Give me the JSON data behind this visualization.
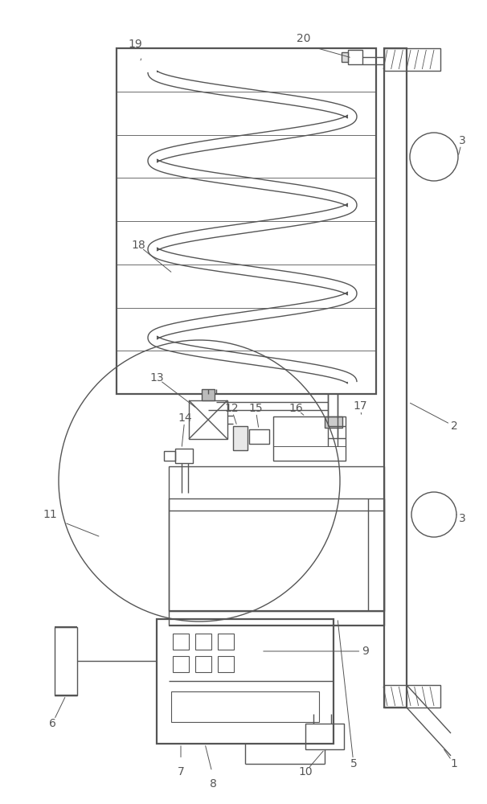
{
  "fig_width": 6.06,
  "fig_height": 10.0,
  "dpi": 100,
  "bg_color": "#ffffff",
  "lc": "#555555",
  "lw": 1.0,
  "lw2": 1.6,
  "fs": 10
}
